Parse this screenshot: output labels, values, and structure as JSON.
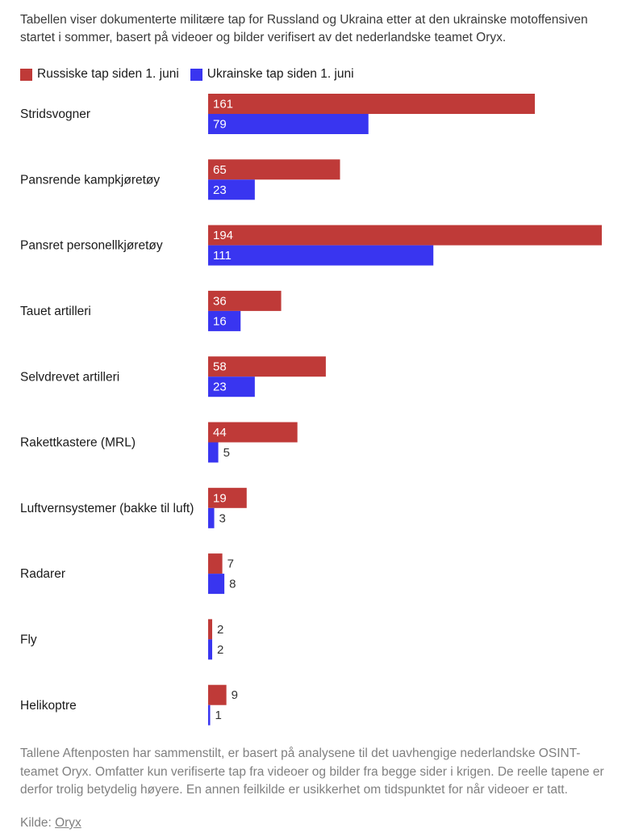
{
  "intro": "Tabellen viser dokumenterte militære tap for Russland og Ukraina etter at den ukrainske motoffensiven startet i sommer, basert på videoer og bilder verifisert av det nederlandske teamet Oryx.",
  "colors": {
    "russia": "#bf3a38",
    "ukraine": "#3935f0",
    "label_inside": "#ffffff",
    "label_outside": "#333333"
  },
  "chart_data": {
    "type": "bar",
    "orientation": "horizontal",
    "categories": [
      "Stridsvogner",
      "Pansrende kampkjøretøy",
      "Pansret personellkjøretøy",
      "Tauet artilleri",
      "Selvdrevet artilleri",
      "Rakettkastere (MRL)",
      "Luftvernsystemer (bakke til luft)",
      "Radarer",
      "Fly",
      "Helikoptre"
    ],
    "series": [
      {
        "name": "Russiske tap siden 1. juni",
        "values": [
          161,
          65,
          194,
          36,
          58,
          44,
          19,
          7,
          2,
          9
        ]
      },
      {
        "name": "Ukrainske tap siden 1. juni",
        "values": [
          79,
          23,
          111,
          16,
          23,
          5,
          3,
          8,
          2,
          1
        ]
      }
    ],
    "xlim": [
      0,
      194
    ],
    "grid": false,
    "legend": "top-left",
    "data_labels": true
  },
  "footnote": "Tallene Aftenposten har sammenstilt, er basert på analysene til det uavhengige nederlandske OSINT-teamet Oryx. Omfatter kun verifiserte tap fra videoer og bilder fra begge sider i krigen. De reelle tapene er derfor trolig betydelig høyere. En annen feilkilde er usikkerhet om tidspunktet for når videoer er tatt.",
  "source": {
    "label": "Kilde:",
    "link_text": "Oryx"
  }
}
